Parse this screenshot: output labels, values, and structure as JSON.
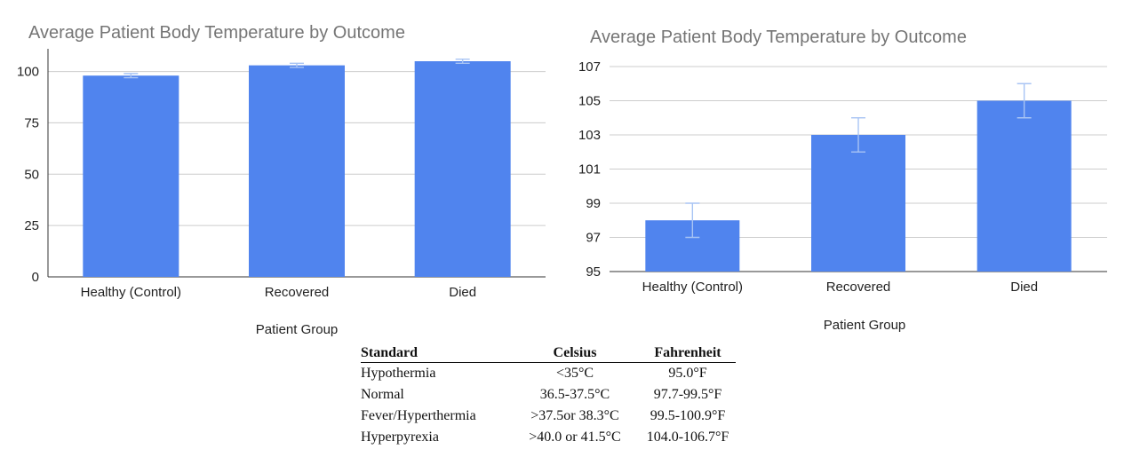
{
  "chart_data": [
    {
      "type": "bar",
      "title": "Average Patient Body Temperature by Outcome",
      "xlabel": "Patient Group",
      "ylabel": "",
      "categories": [
        "Healthy (Control)",
        "Recovered",
        "Died"
      ],
      "values": [
        98,
        103,
        105
      ],
      "error": [
        1,
        1,
        1
      ],
      "ylim": [
        0,
        105
      ],
      "yticks": [
        0,
        25,
        50,
        75,
        100
      ],
      "grid": true,
      "bar_color": "#5084ee",
      "error_color": "#a8c4f4"
    },
    {
      "type": "bar",
      "title": "Average Patient Body Temperature by Outcome",
      "xlabel": "Patient Group",
      "ylabel": "",
      "categories": [
        "Healthy (Control)",
        "Recovered",
        "Died"
      ],
      "values": [
        98,
        103,
        105
      ],
      "error": [
        1,
        1,
        1
      ],
      "ylim": [
        95,
        107
      ],
      "yticks": [
        95,
        97,
        99,
        101,
        103,
        105,
        107
      ],
      "grid": true,
      "bar_color": "#5084ee",
      "error_color": "#a8c4f4"
    }
  ],
  "table": {
    "headers": [
      "Standard",
      "Celsius",
      "Fahrenheit"
    ],
    "rows": [
      [
        "Hypothermia",
        "<35°C",
        "95.0°F"
      ],
      [
        "Normal",
        "36.5-37.5°C",
        "97.7-99.5°F"
      ],
      [
        "Fever/Hyperthermia",
        ">37.5or 38.3°C",
        "99.5-100.9°F"
      ],
      [
        "Hyperpyrexia",
        ">40.0 or 41.5°C",
        "104.0-106.7°F"
      ]
    ]
  }
}
